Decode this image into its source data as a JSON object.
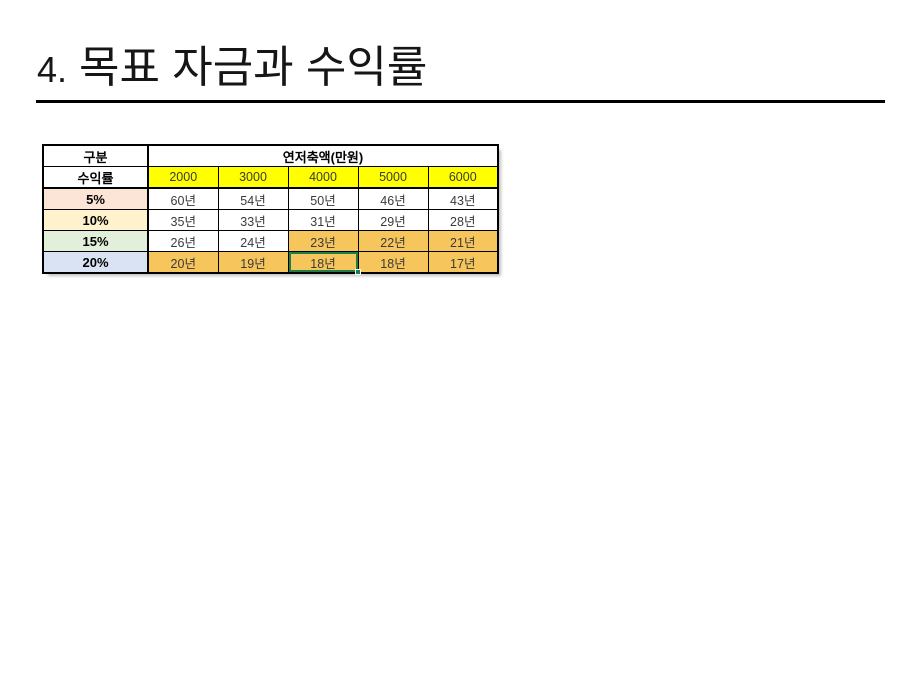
{
  "slide": {
    "title_number": "4.",
    "title_text": "목표 자금과 수익률",
    "background": "#ffffff",
    "rule_color": "#000000"
  },
  "table": {
    "corner_label": "구분",
    "rate_header_label": "수익률",
    "span_header_label": "연저축액(만원)",
    "amount_columns": [
      "2000",
      "3000",
      "4000",
      "5000",
      "6000"
    ],
    "colors": {
      "amount_header_bg": "#ffff00",
      "highlight_bg": "#f6c65c",
      "default_bg": "#ffffff",
      "selection_green": "#1e7e45",
      "border": "#000000"
    },
    "rows": [
      {
        "rate": "5%",
        "rate_bg": "#fce4d6",
        "values": [
          "60년",
          "54년",
          "50년",
          "46년",
          "43년"
        ],
        "value_bgs": [
          "#ffffff",
          "#ffffff",
          "#ffffff",
          "#ffffff",
          "#ffffff"
        ]
      },
      {
        "rate": "10%",
        "rate_bg": "#fff2cc",
        "values": [
          "35년",
          "33년",
          "31년",
          "29년",
          "28년"
        ],
        "value_bgs": [
          "#ffffff",
          "#ffffff",
          "#ffffff",
          "#ffffff",
          "#ffffff"
        ]
      },
      {
        "rate": "15%",
        "rate_bg": "#e2efda",
        "values": [
          "26년",
          "24년",
          "23년",
          "22년",
          "21년"
        ],
        "value_bgs": [
          "#ffffff",
          "#ffffff",
          "#f6c65c",
          "#f6c65c",
          "#f6c65c"
        ]
      },
      {
        "rate": "20%",
        "rate_bg": "#dae3f3",
        "values": [
          "20년",
          "19년",
          "18년",
          "18년",
          "17년"
        ],
        "value_bgs": [
          "#f6c65c",
          "#f6c65c",
          "#f6c65c",
          "#f6c65c",
          "#f6c65c"
        ]
      }
    ],
    "selected_cell": {
      "row_rate": "20%",
      "column": "4000",
      "value": "18년"
    }
  }
}
